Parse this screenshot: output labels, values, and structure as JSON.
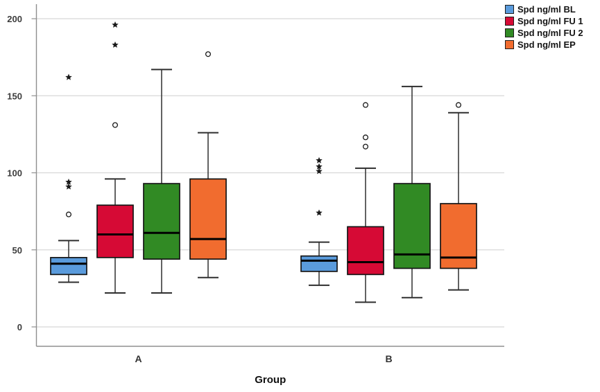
{
  "chart_data": {
    "type": "boxplot",
    "title": "",
    "xlabel": "Group",
    "ylabel": "",
    "categories": [
      "A",
      "B"
    ],
    "y_ticks": [
      0,
      50,
      100,
      150,
      200
    ],
    "ylim": [
      0,
      200
    ],
    "grid": true,
    "legend_position": "top-right",
    "outlier_marker": "circle",
    "extreme_marker": "star",
    "series": [
      {
        "name": "Spd ng/ml BL",
        "color": "#5A9BDC",
        "boxes": [
          {
            "group": "A",
            "whisker_low": 29,
            "q1": 34,
            "median": 41,
            "q3": 45,
            "whisker_high": 56,
            "outliers": [
              73
            ],
            "extremes": [
              91,
              94,
              162
            ]
          },
          {
            "group": "B",
            "whisker_low": 27,
            "q1": 36,
            "median": 43,
            "q3": 46,
            "whisker_high": 55,
            "outliers": [],
            "extremes": [
              74,
              101,
              104,
              108
            ]
          }
        ]
      },
      {
        "name": "Spd ng/ml FU 1",
        "color": "#D60A35",
        "boxes": [
          {
            "group": "A",
            "whisker_low": 22,
            "q1": 45,
            "median": 60,
            "q3": 79,
            "whisker_high": 96,
            "outliers": [
              131
            ],
            "extremes": [
              183,
              196
            ]
          },
          {
            "group": "B",
            "whisker_low": 16,
            "q1": 34,
            "median": 42,
            "q3": 65,
            "whisker_high": 103,
            "outliers": [
              117,
              123,
              144
            ],
            "extremes": []
          }
        ]
      },
      {
        "name": "Spd ng/ml FU 2",
        "color": "#318A24",
        "boxes": [
          {
            "group": "A",
            "whisker_low": 22,
            "q1": 44,
            "median": 61,
            "q3": 93,
            "whisker_high": 167,
            "outliers": [],
            "extremes": []
          },
          {
            "group": "B",
            "whisker_low": 19,
            "q1": 38,
            "median": 47,
            "q3": 93,
            "whisker_high": 156,
            "outliers": [],
            "extremes": []
          }
        ]
      },
      {
        "name": "Spd ng/ml EP",
        "color": "#F16C2F",
        "boxes": [
          {
            "group": "A",
            "whisker_low": 32,
            "q1": 44,
            "median": 57,
            "q3": 96,
            "whisker_high": 126,
            "outliers": [
              177
            ],
            "extremes": []
          },
          {
            "group": "B",
            "whisker_low": 24,
            "q1": 38,
            "median": 45,
            "q3": 80,
            "whisker_high": 139,
            "outliers": [
              144
            ],
            "extremes": []
          }
        ]
      }
    ],
    "style_colors": {
      "gridline": "#d8d8d8",
      "axis_line": "#8f8f8f",
      "box_border": "#141414",
      "median_line": "#000000",
      "whisker": "#2e2e2e",
      "outlier_stroke": "#1a1a1a"
    }
  }
}
